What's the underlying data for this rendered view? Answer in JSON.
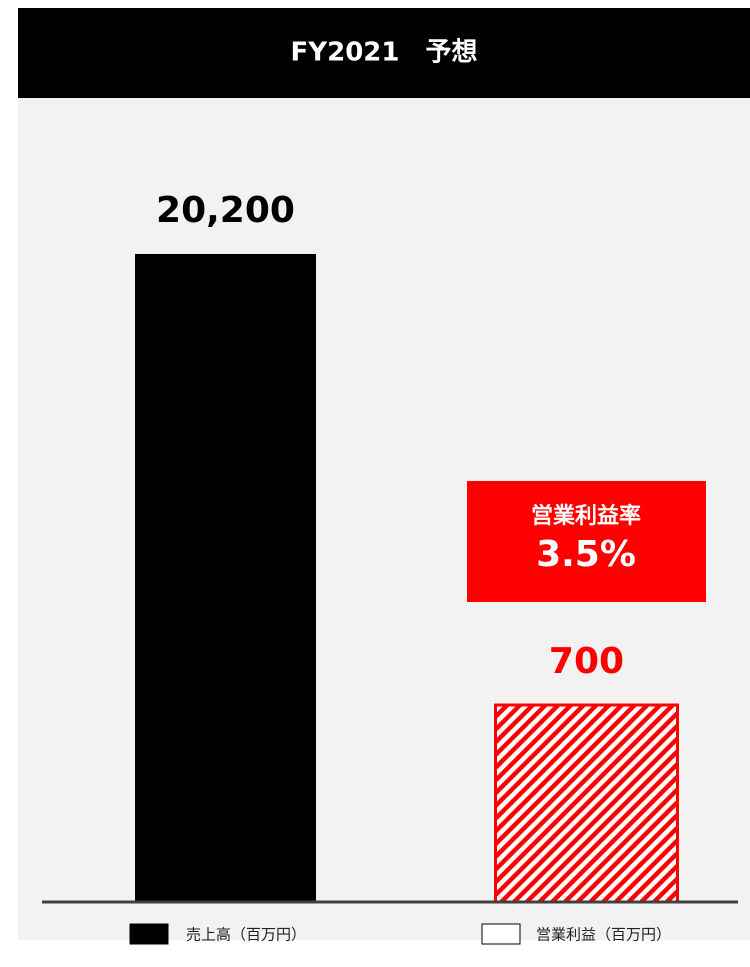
{
  "chart_data": {
    "type": "bar",
    "title": "FY2021　予想",
    "annotations": [
      "営業利益率",
      "3.5%"
    ],
    "series": [
      {
        "name": "売上高（百万円）",
        "color": "#000000",
        "values": [
          20200
        ],
        "value_labels": [
          "20,200"
        ]
      },
      {
        "name": "営業利益（百万円）",
        "color": "#ff0000",
        "values": [
          700
        ],
        "value_labels": [
          "700"
        ],
        "axis": "y2"
      }
    ],
    "ylim": [
      0,
      25000
    ],
    "y2lim": [
      0,
      2850
    ]
  }
}
